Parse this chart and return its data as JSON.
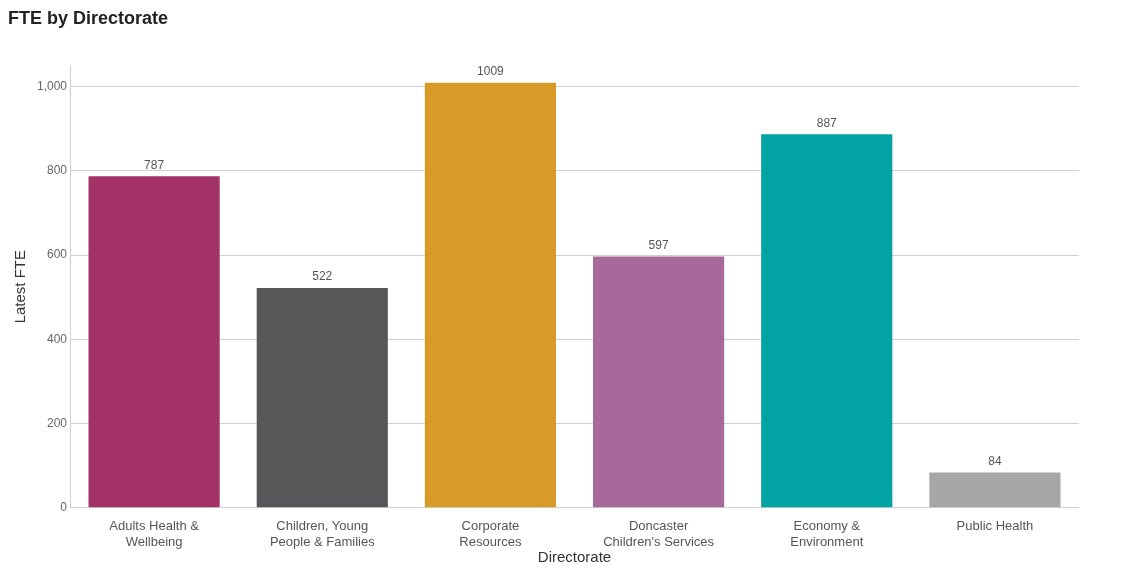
{
  "chart_data": {
    "type": "bar",
    "title": "FTE by Directorate",
    "xlabel": "Directorate",
    "ylabel": "Latest FTE",
    "categories": [
      "Adults Health &\nWellbeing",
      "Children, Young\nPeople & Families",
      "Corporate\nResources",
      "Doncaster\nChildren's Services",
      "Economy &\nEnvironment",
      "Public Health"
    ],
    "values": [
      787,
      522,
      1009,
      597,
      887,
      84
    ],
    "colors": [
      "#a33366",
      "#555759",
      "#d89b28",
      "#a66999",
      "#01a3a4",
      "#a6a6a6"
    ],
    "ylim": [
      0,
      1050
    ],
    "yticks": [
      0,
      200,
      400,
      600,
      800,
      {
        "value": 1000,
        "label": "1,000"
      }
    ],
    "grid": "y",
    "data_labels": true,
    "legend": false
  }
}
